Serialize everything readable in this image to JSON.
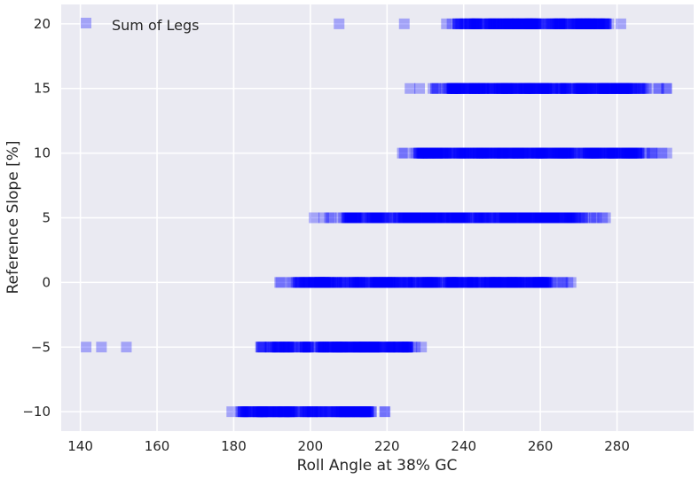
{
  "chart_data": {
    "type": "scatter",
    "xlabel": "Roll Angle at 38% GC",
    "ylabel": "Reference Slope [%]",
    "xlim": [
      135,
      300
    ],
    "ylim": [
      -11.5,
      21.5
    ],
    "xticks": [
      140,
      160,
      180,
      200,
      220,
      240,
      260,
      280
    ],
    "yticks": [
      -10,
      -5,
      0,
      5,
      10,
      15,
      20
    ],
    "xtick_labels": [
      "140",
      "160",
      "180",
      "200",
      "220",
      "240",
      "260",
      "280"
    ],
    "ytick_labels": [
      "−10",
      "−5",
      "0",
      "5",
      "10",
      "15",
      "20"
    ],
    "grid": true,
    "legend_position": "top-left",
    "background": "#eaeaf2",
    "marker": "square",
    "marker_color": "#0000ff",
    "marker_alpha": 0.3,
    "series": [
      {
        "name": "Sum of Legs",
        "color": "#0000ff",
        "groups": [
          {
            "y": 20,
            "outliers": [
              207.5,
              224.5
            ],
            "range": [
              235.5,
              281
            ]
          },
          {
            "y": 15,
            "outliers": [
              226,
              228.5
            ],
            "range": [
              232,
              293
            ]
          },
          {
            "y": 10,
            "outliers": [],
            "range": [
              224,
              293
            ]
          },
          {
            "y": 5,
            "outliers": [
              201,
              203.5
            ],
            "range": [
              205,
              277
            ]
          },
          {
            "y": 0,
            "outliers": [],
            "range": [
              192,
              268
            ]
          },
          {
            "y": -5,
            "outliers": [
              141.5,
              145.5,
              152
            ],
            "range": [
              187,
              229
            ]
          },
          {
            "y": -10,
            "outliers": [],
            "range": [
              179.5,
              219.5
            ]
          }
        ]
      }
    ]
  }
}
